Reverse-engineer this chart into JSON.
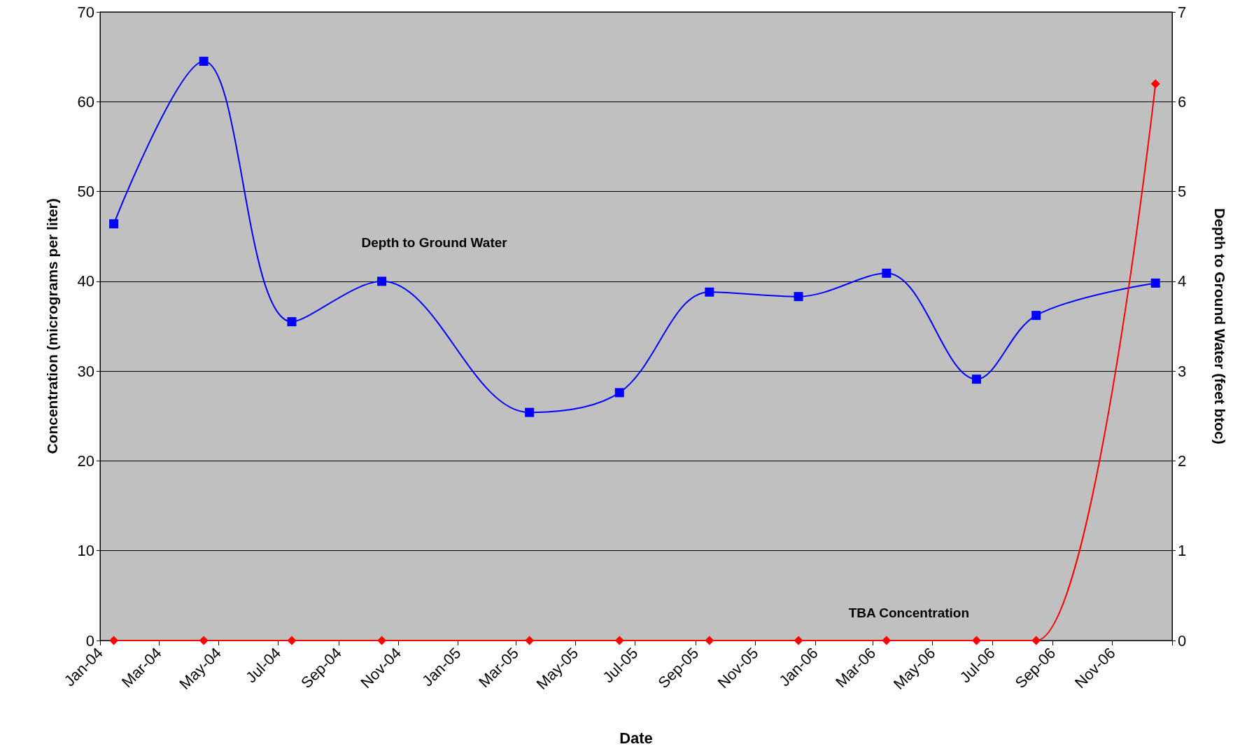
{
  "chart_data": {
    "type": "line",
    "xlabel": "Date",
    "ylabel": "Concentration (micrograms per liter)",
    "y2label": "Depth to Ground Water (feet btoc)",
    "xlim": [
      "2004-01-01",
      "2007-01-01"
    ],
    "xticks": [
      {
        "value": "2004-01-01",
        "label": "Jan-04"
      },
      {
        "value": "2004-03-01",
        "label": "Mar-04"
      },
      {
        "value": "2004-05-01",
        "label": "May-04"
      },
      {
        "value": "2004-07-01",
        "label": "Jul-04"
      },
      {
        "value": "2004-09-01",
        "label": "Sep-04"
      },
      {
        "value": "2004-11-01",
        "label": "Nov-04"
      },
      {
        "value": "2005-01-01",
        "label": "Jan-05"
      },
      {
        "value": "2005-03-01",
        "label": "Mar-05"
      },
      {
        "value": "2005-05-01",
        "label": "May-05"
      },
      {
        "value": "2005-07-01",
        "label": "Jul-05"
      },
      {
        "value": "2005-09-01",
        "label": "Sep-05"
      },
      {
        "value": "2005-11-01",
        "label": "Nov-05"
      },
      {
        "value": "2006-01-01",
        "label": "Jan-06"
      },
      {
        "value": "2006-03-01",
        "label": "Mar-06"
      },
      {
        "value": "2006-05-01",
        "label": "May-06"
      },
      {
        "value": "2006-07-01",
        "label": "Jul-06"
      },
      {
        "value": "2006-09-01",
        "label": "Sep-06"
      },
      {
        "value": "2006-11-01",
        "label": "Nov-06"
      },
      {
        "value": "2007-01-01",
        "label": null
      }
    ],
    "ylim": [
      0,
      70
    ],
    "yticks": [
      0,
      10,
      20,
      30,
      40,
      50,
      60,
      70
    ],
    "y2lim": [
      0,
      7
    ],
    "y2ticks": [
      0,
      1,
      2,
      3,
      4,
      5,
      6,
      7
    ],
    "grid": "y",
    "x": [
      "2004-01-15",
      "2004-04-16",
      "2004-07-15",
      "2004-10-15",
      "2005-03-15",
      "2005-06-15",
      "2005-09-15",
      "2005-12-15",
      "2006-03-15",
      "2006-06-15",
      "2006-08-15",
      "2006-12-15"
    ],
    "series": [
      {
        "name": "Depth to Ground Water",
        "color": "#0000ff",
        "axis": "y2",
        "marker": "square",
        "values": [
          4.64,
          6.45,
          3.55,
          4.0,
          2.54,
          2.76,
          3.88,
          3.83,
          4.09,
          2.91,
          3.62,
          3.98
        ]
      },
      {
        "name": "TBA Concentration",
        "color": "#ff0000",
        "axis": "y",
        "marker": "diamond",
        "values": [
          0,
          0,
          0,
          0,
          0,
          0,
          0,
          0,
          0,
          0,
          0,
          62
        ]
      }
    ]
  }
}
